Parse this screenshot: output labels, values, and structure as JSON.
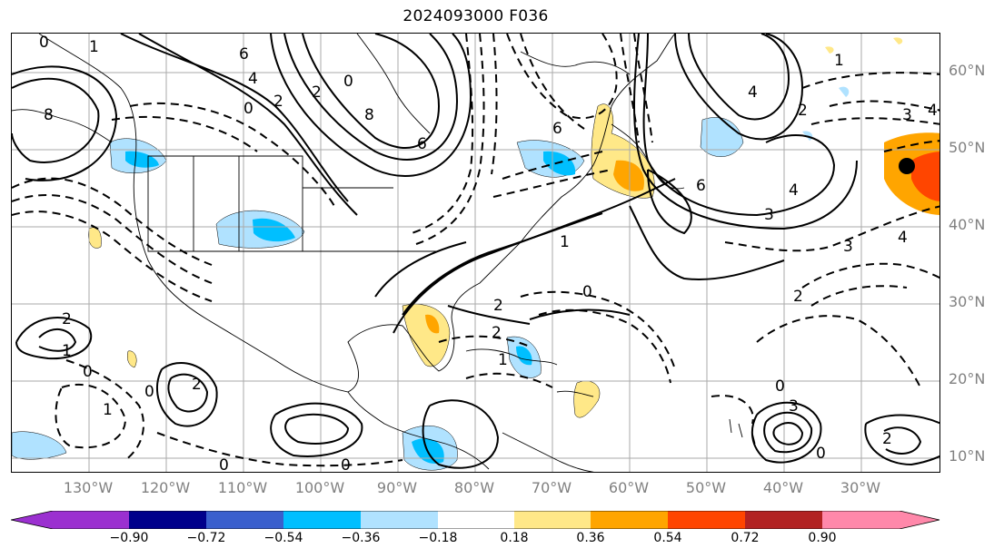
{
  "title": "2024093000 F036",
  "lat_labels": [
    "60°N",
    "50°N",
    "40°N",
    "30°N",
    "20°N",
    "10°N"
  ],
  "lon_labels": [
    "130°W",
    "120°W",
    "110°W",
    "100°W",
    "90°W",
    "80°W",
    "70°W",
    "60°W",
    "50°W",
    "40°W",
    "30°W"
  ],
  "colorbar": {
    "colors": [
      "#9b30d0",
      "#00008b",
      "#3a5fcd",
      "#00bfff",
      "#b0e2ff",
      "#ffffff",
      "#ffe888",
      "#ffa500",
      "#ff4500",
      "#b22222",
      "#ff88aa"
    ],
    "ticks": [
      "−0.90",
      "−0.72",
      "−0.54",
      "−0.36",
      "−0.18",
      "0.18",
      "0.36",
      "0.54",
      "0.72",
      "0.90"
    ]
  },
  "contour_labels": [
    {
      "t": "0"
    },
    {
      "t": "1"
    },
    {
      "t": "6"
    },
    {
      "t": "4"
    },
    {
      "t": "2"
    },
    {
      "t": "0"
    },
    {
      "t": "8"
    },
    {
      "t": "6"
    },
    {
      "t": "0"
    },
    {
      "t": "2"
    },
    {
      "t": "6"
    },
    {
      "t": "4"
    },
    {
      "t": "2"
    },
    {
      "t": "1"
    },
    {
      "t": "6"
    },
    {
      "t": "4"
    },
    {
      "t": "3"
    },
    {
      "t": "3"
    },
    {
      "t": "4"
    },
    {
      "t": "1"
    },
    {
      "t": "0"
    },
    {
      "t": "2"
    },
    {
      "t": "2"
    },
    {
      "t": "2"
    },
    {
      "t": "1"
    },
    {
      "t": "0"
    },
    {
      "t": "1"
    },
    {
      "t": "0"
    },
    {
      "t": "2"
    },
    {
      "t": "0"
    },
    {
      "t": "0"
    },
    {
      "t": "0"
    },
    {
      "t": "3"
    },
    {
      "t": "2"
    },
    {
      "t": "0"
    },
    {
      "t": "8"
    },
    {
      "t": "2"
    },
    {
      "t": "4"
    },
    {
      "t": "3"
    },
    {
      "t": "1"
    }
  ],
  "marker": "observation-dot"
}
